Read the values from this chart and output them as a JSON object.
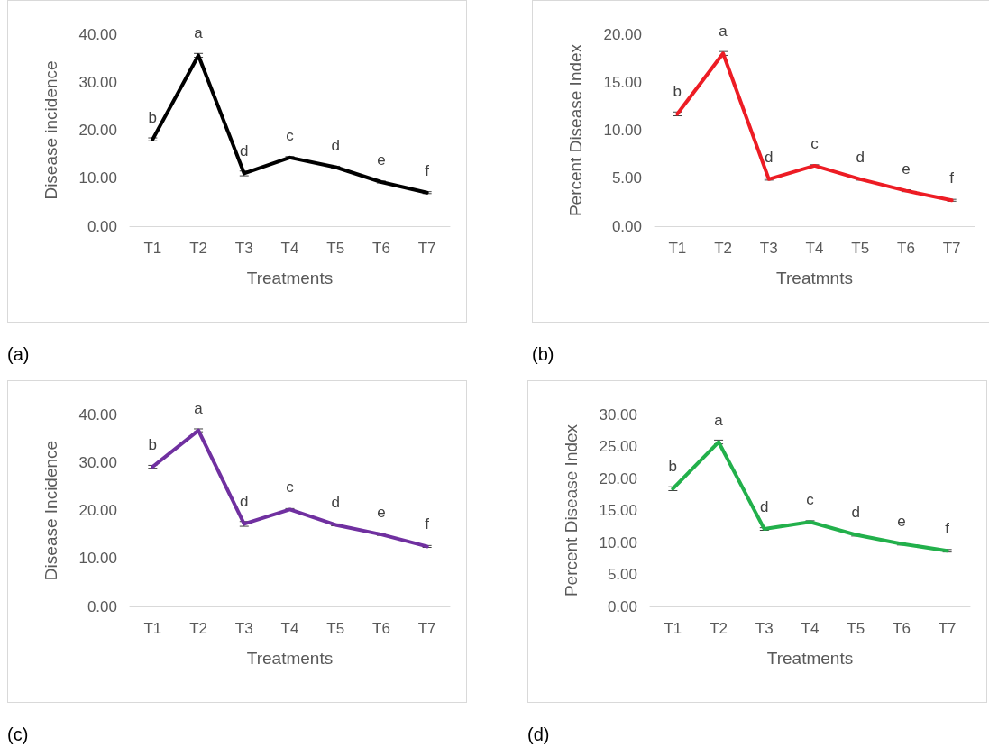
{
  "chart_data": [
    {
      "type": "line",
      "xlabel": "Treatments",
      "ylabel": "Disease incidence",
      "annotations": [
        "(a)"
      ],
      "categories": [
        "T1",
        "T2",
        "T3",
        "T4",
        "T5",
        "T6",
        "T7"
      ],
      "series": [
        {
          "color": "#000000",
          "values": [
            18.1,
            35.6,
            11.0,
            14.3,
            12.3,
            9.2,
            7.0
          ],
          "errors": [
            0.3,
            0.4,
            0.5,
            0.2,
            0.2,
            0.2,
            0.2
          ],
          "value_labels": [
            "b",
            "a",
            "d",
            "c",
            "d",
            "e",
            "f"
          ]
        }
      ],
      "ylim": [
        0,
        40
      ],
      "yticks": [
        {
          "value": 0,
          "label": "0.00"
        },
        {
          "value": 10,
          "label": "10.00"
        },
        {
          "value": 20,
          "label": "20.00"
        },
        {
          "value": 30,
          "label": "30.00"
        },
        {
          "value": 40,
          "label": "40.00"
        }
      ],
      "marker": "none"
    },
    {
      "type": "line",
      "xlabel": "Treatmnts",
      "ylabel": "Percent Disease Index",
      "annotations": [
        "(b)"
      ],
      "categories": [
        "T1",
        "T2",
        "T3",
        "T4",
        "T5",
        "T6",
        "T7"
      ],
      "series": [
        {
          "color": "#ed1c24",
          "values": [
            11.7,
            18.0,
            4.9,
            6.3,
            4.9,
            3.7,
            2.7
          ],
          "errors": [
            0.2,
            0.2,
            0.1,
            0.1,
            0.1,
            0.1,
            0.1
          ],
          "value_labels": [
            "b",
            "a",
            "d",
            "c",
            "d",
            "e",
            "f"
          ]
        }
      ],
      "ylim": [
        0,
        20
      ],
      "yticks": [
        {
          "value": 0,
          "label": "0.00"
        },
        {
          "value": 5,
          "label": "5.00"
        },
        {
          "value": 10,
          "label": "10.00"
        },
        {
          "value": 15,
          "label": "15.00"
        },
        {
          "value": 20,
          "label": "20.00"
        }
      ],
      "marker": "none"
    },
    {
      "type": "line",
      "xlabel": "Treatments",
      "ylabel": "Disease Incidence",
      "annotations": [
        "(c)"
      ],
      "categories": [
        "T1",
        "T2",
        "T3",
        "T4",
        "T5",
        "T6",
        "T7"
      ],
      "series": [
        {
          "color": "#7030a0",
          "values": [
            29.1,
            36.7,
            17.2,
            20.2,
            17.0,
            15.0,
            12.5
          ],
          "errors": [
            0.3,
            0.3,
            0.5,
            0.2,
            0.2,
            0.2,
            0.2
          ],
          "value_labels": [
            "b",
            "a",
            "d",
            "c",
            "d",
            "e",
            "f"
          ]
        }
      ],
      "ylim": [
        0,
        40
      ],
      "yticks": [
        {
          "value": 0,
          "label": "0.00"
        },
        {
          "value": 10,
          "label": "10.00"
        },
        {
          "value": 20,
          "label": "20.00"
        },
        {
          "value": 30,
          "label": "30.00"
        },
        {
          "value": 40,
          "label": "40.00"
        }
      ],
      "marker": "none"
    },
    {
      "type": "line",
      "xlabel": "Treatments",
      "ylabel": "Percent Disease Index",
      "annotations": [
        "(d)"
      ],
      "categories": [
        "T1",
        "T2",
        "T3",
        "T4",
        "T5",
        "T6",
        "T7"
      ],
      "series": [
        {
          "color": "#22b04b",
          "values": [
            18.4,
            25.7,
            12.1,
            13.2,
            11.2,
            9.8,
            8.7
          ],
          "errors": [
            0.3,
            0.3,
            0.2,
            0.2,
            0.2,
            0.2,
            0.2
          ],
          "value_labels": [
            "b",
            "a",
            "d",
            "c",
            "d",
            "e",
            "f"
          ]
        }
      ],
      "ylim": [
        0,
        30
      ],
      "yticks": [
        {
          "value": 0,
          "label": "0.00"
        },
        {
          "value": 5,
          "label": "5.00"
        },
        {
          "value": 10,
          "label": "10.00"
        },
        {
          "value": 15,
          "label": "15.00"
        },
        {
          "value": 20,
          "label": "20.00"
        },
        {
          "value": 25,
          "label": "25.00"
        },
        {
          "value": 30,
          "label": "30.00"
        }
      ],
      "marker": "none"
    }
  ]
}
